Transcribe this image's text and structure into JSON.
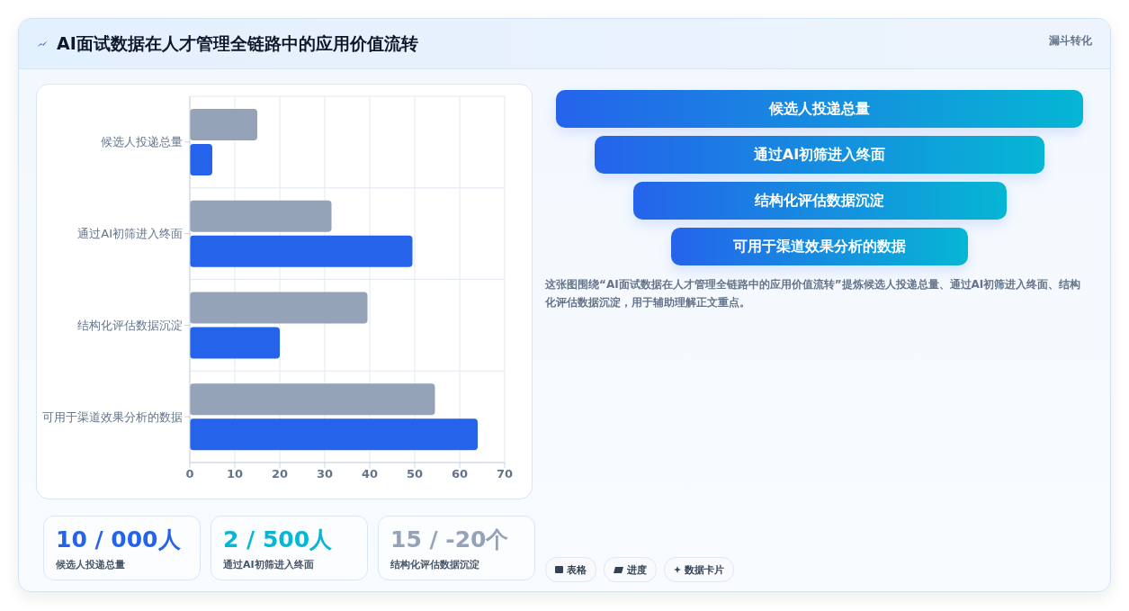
{
  "chart_data": [
    {
      "type": "bar",
      "title": "AI面试数据在人才管理全链路中的应用价值流转",
      "annotations": [
        "漏斗转化"
      ],
      "orientation": "horizontal",
      "categories": [
        "候选人投递总量",
        "通过AI初筛进入终面",
        "结构化评估数据沉淀",
        "可用于渠道效果分析的数据"
      ],
      "series": [
        {
          "color": "#94a3b8",
          "values": [
            15,
            31.5,
            39.5,
            54.5
          ]
        },
        {
          "color": "#2563eb",
          "values": [
            5,
            49.5,
            20,
            64
          ]
        }
      ],
      "xlim": [
        0,
        70
      ],
      "xticks": [
        0,
        10,
        20,
        30,
        40,
        50,
        60,
        70
      ],
      "grid": true
    },
    {
      "type": "other",
      "categories": [
        "候选人投递总量",
        "通过AI初筛进入终面",
        "结构化评估数据沉淀",
        "可用于渠道效果分析的数据"
      ],
      "colors": [
        "#2563eb",
        "#06b6d4"
      ],
      "annotations": [
        "这张图围绕“AI面试数据在人才管理全链路中的应用价值流转”提炼候选人投递总量、通过AI初筛进入终面、结构化评估数据沉淀，用于辅助理解正文重点。",
        "表格",
        "进度",
        "数据卡片"
      ]
    },
    {
      "type": "other",
      "categories": [
        "候选人投递总量",
        "通过AI初筛进入终面",
        "结构化评估数据沉淀"
      ],
      "annotations": [
        "10 / 000人",
        "2 / 500人",
        "15 / -20个"
      ]
    }
  ]
}
